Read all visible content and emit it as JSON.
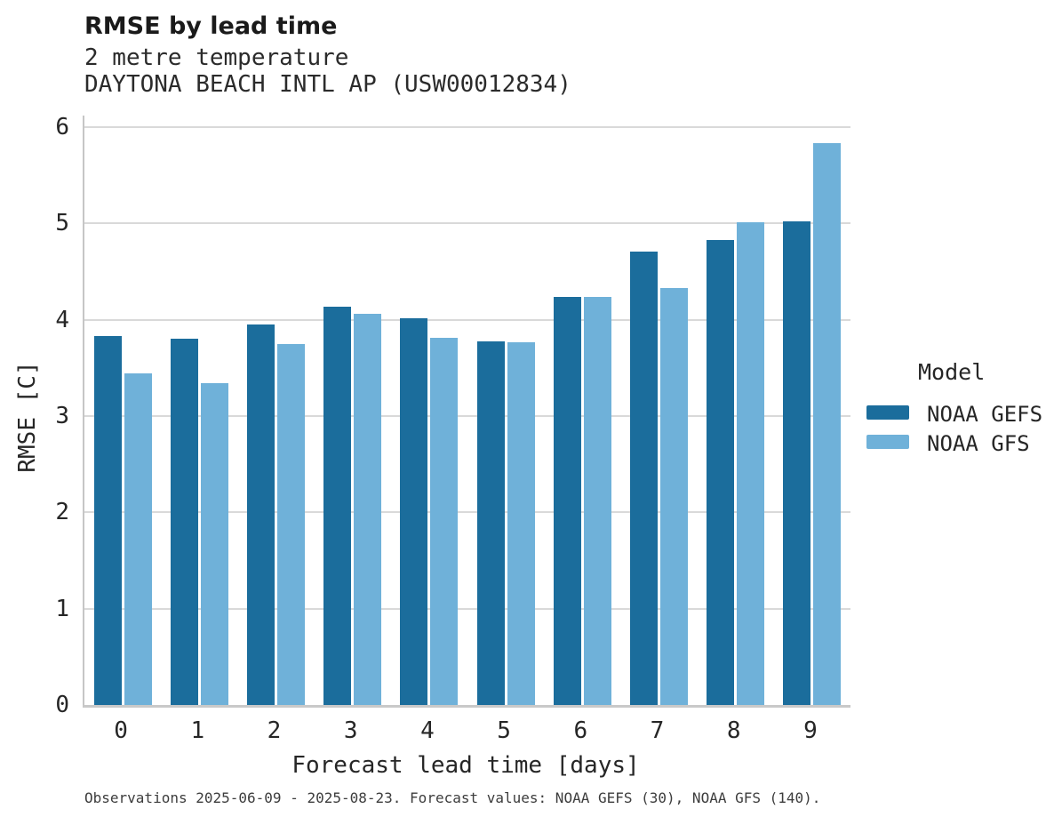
{
  "header": {
    "title": "RMSE by lead time",
    "subtitle_line1": "2 metre temperature",
    "subtitle_line2": "DAYTONA BEACH INTL AP (USW00012834)"
  },
  "chart_data": {
    "type": "bar",
    "title": "RMSE by lead time",
    "subtitle": "2 metre temperature — DAYTONA BEACH INTL AP (USW00012834)",
    "categories": [
      "0",
      "1",
      "2",
      "3",
      "4",
      "5",
      "6",
      "7",
      "8",
      "9"
    ],
    "series": [
      {
        "name": "NOAA GEFS",
        "color": "#1b6d9c",
        "values": [
          3.83,
          3.8,
          3.95,
          4.14,
          4.02,
          3.78,
          4.24,
          4.71,
          4.83,
          5.02
        ]
      },
      {
        "name": "NOAA GFS",
        "color": "#6fb1d9",
        "values": [
          3.44,
          3.34,
          3.75,
          4.06,
          3.81,
          3.77,
          4.24,
          4.33,
          5.01,
          5.83
        ]
      }
    ],
    "xlabel": "Forecast lead time [days]",
    "ylabel": "RMSE [C]",
    "ylim": [
      0,
      6.12
    ],
    "yticks": [
      0,
      1,
      2,
      3,
      4,
      5,
      6
    ],
    "grid": "horizontal",
    "legend_position": "right"
  },
  "legend": {
    "title": "Model",
    "entries": [
      {
        "label": "NOAA GEFS",
        "color": "#1b6d9c"
      },
      {
        "label": "NOAA GFS",
        "color": "#6fb1d9"
      }
    ]
  },
  "footer": {
    "note": "Observations 2025-06-09 - 2025-08-23. Forecast values: NOAA GEFS (30), NOAA GFS (140)."
  },
  "colors": {
    "gridline": "#d9d9d9",
    "spine": "#c9c9c9",
    "text": "#262626"
  }
}
